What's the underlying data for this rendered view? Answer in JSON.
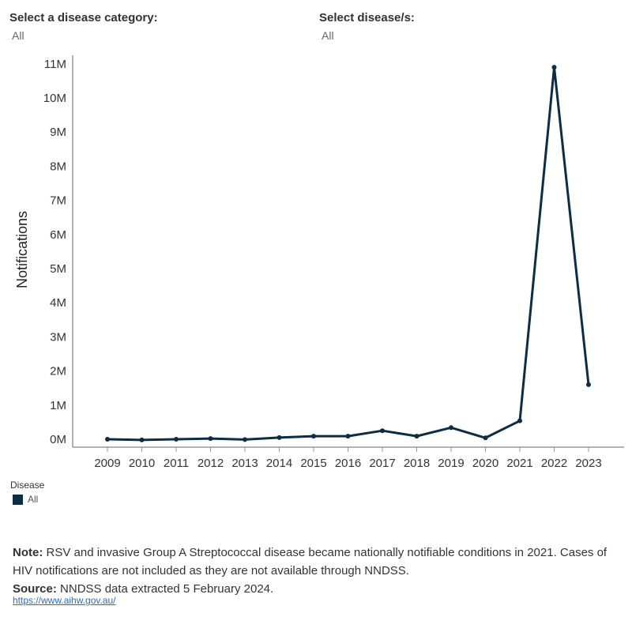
{
  "filters": {
    "category_label": "Select a disease category:",
    "category_value": "All",
    "disease_label": "Select disease/s:",
    "disease_value": "All"
  },
  "chart_data": {
    "type": "line",
    "title": "",
    "xlabel": "",
    "ylabel": "Notifications",
    "categories": [
      "2009",
      "2010",
      "2011",
      "2012",
      "2013",
      "2014",
      "2015",
      "2016",
      "2017",
      "2018",
      "2019",
      "2020",
      "2021",
      "2022",
      "2023"
    ],
    "series": [
      {
        "name": "All",
        "color": "#0b2d45",
        "values": [
          0.0,
          -0.02,
          0.0,
          0.02,
          -0.01,
          0.05,
          0.09,
          0.09,
          0.25,
          0.09,
          0.34,
          0.04,
          0.54,
          10.9,
          1.6
        ]
      }
    ],
    "y_unit": "millions",
    "ylim": [
      -0.3,
      11.4
    ],
    "yticks": [
      0,
      1,
      2,
      3,
      4,
      5,
      6,
      7,
      8,
      9,
      10,
      11
    ],
    "ytick_labels": [
      "0M",
      "1M",
      "2M",
      "3M",
      "4M",
      "5M",
      "6M",
      "7M",
      "8M",
      "9M",
      "10M",
      "11M"
    ]
  },
  "legend": {
    "title": "Disease",
    "items": [
      {
        "label": "All",
        "color": "#0b2d45"
      }
    ]
  },
  "notes": {
    "note_label": "Note:",
    "note_text": "RSV and invasive Group A Streptococcal disease became nationally notifiable conditions in 2021. Cases of HIV notifications are not included as they are not available through NNDSS.",
    "source_label": "Source:",
    "source_text": "NNDSS data extracted 5 February 2024.",
    "link_text": "https://www.aihw.gov.au/"
  }
}
